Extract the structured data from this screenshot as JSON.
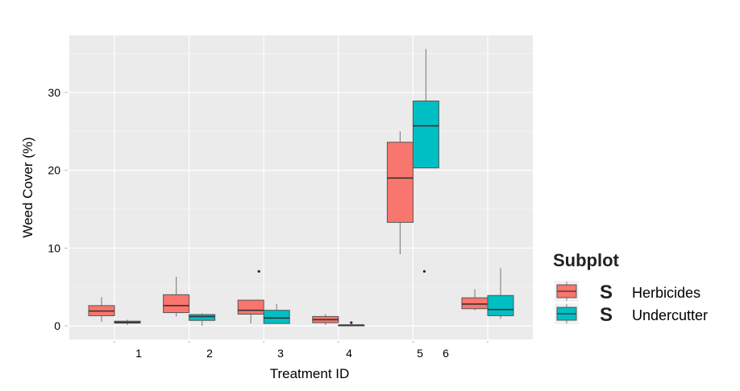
{
  "chart_data": {
    "type": "boxplot",
    "title": "",
    "xlabel": "Treatment ID",
    "ylabel": "Weed Cover (%)",
    "ylim": [
      -1.8,
      37.5
    ],
    "yticks": [
      0,
      10,
      20,
      30
    ],
    "xtick_labels": [
      "1",
      "2",
      "3",
      "4",
      "5",
      "6"
    ],
    "grid": true,
    "background": "#EBEBEB",
    "legend": {
      "title": "Subplot",
      "placement": "right",
      "truncated_prefix": "S",
      "entries": [
        "Herbicides",
        "Undercutter"
      ]
    },
    "categories": [
      "1",
      "2",
      "3",
      "4",
      "5",
      "6"
    ],
    "series": [
      {
        "name": "Herbicides",
        "color": "#F8766D",
        "boxes": [
          {
            "whisker_low": 0.5,
            "q1": 1.3,
            "median": 1.9,
            "q3": 2.6,
            "whisker_high": 3.7,
            "outliers": []
          },
          {
            "whisker_low": 1.2,
            "q1": 1.7,
            "median": 2.6,
            "q3": 4.0,
            "whisker_high": 6.3,
            "outliers": []
          },
          {
            "whisker_low": 0.3,
            "q1": 1.5,
            "median": 2.0,
            "q3": 3.3,
            "whisker_high": 3.3,
            "outliers": [
              7.0
            ]
          },
          {
            "whisker_low": 0.1,
            "q1": 0.4,
            "median": 0.8,
            "q3": 1.2,
            "whisker_high": 1.5,
            "outliers": []
          },
          {
            "whisker_low": 9.2,
            "q1": 13.3,
            "median": 19.0,
            "q3": 23.6,
            "whisker_high": 25.0,
            "outliers": []
          },
          {
            "whisker_low": 2.0,
            "q1": 2.2,
            "median": 2.8,
            "q3": 3.6,
            "whisker_high": 4.7,
            "outliers": []
          }
        ]
      },
      {
        "name": "Undercutter",
        "color": "#00BFC4",
        "boxes": [
          {
            "whisker_low": 0.1,
            "q1": 0.35,
            "median": 0.45,
            "q3": 0.6,
            "whisker_high": 0.8,
            "outliers": []
          },
          {
            "whisker_low": 0.0,
            "q1": 0.7,
            "median": 1.2,
            "q3": 1.45,
            "whisker_high": 1.6,
            "outliers": []
          },
          {
            "whisker_low": 0.3,
            "q1": 0.3,
            "median": 1.0,
            "q3": 2.0,
            "whisker_high": 2.8,
            "outliers": []
          },
          {
            "whisker_low": 0.1,
            "q1": 0.1,
            "median": 0.1,
            "q3": 0.1,
            "whisker_high": 0.1,
            "outliers": [
              0.4
            ]
          },
          {
            "whisker_low": 20.3,
            "q1": 20.3,
            "median": 25.7,
            "q3": 28.9,
            "whisker_high": 35.6,
            "outliers": [
              7.0
            ]
          },
          {
            "whisker_low": 0.9,
            "q1": 1.3,
            "median": 2.1,
            "q3": 3.9,
            "whisker_high": 7.4,
            "outliers": []
          }
        ]
      }
    ]
  }
}
